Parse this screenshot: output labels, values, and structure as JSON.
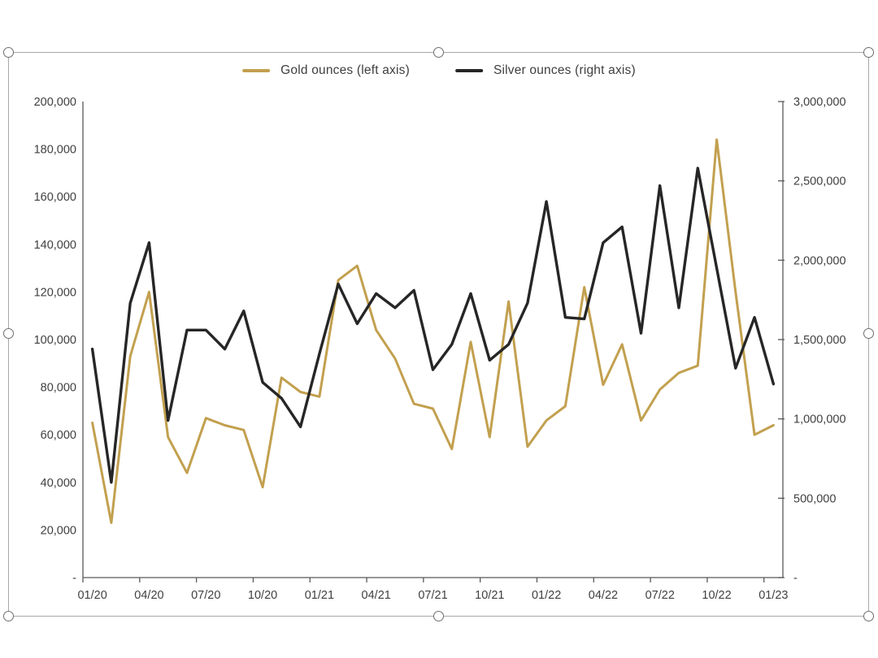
{
  "chart": {
    "legend": {
      "gold_label": "Gold ounces (left axis)",
      "silver_label": "Silver ounces (right axis)"
    },
    "colors": {
      "gold_line": "#c2a04f",
      "silver_line": "#262626",
      "axis_line": "#595959",
      "tick_text": "#404040",
      "frame_border": "#a9a9a9",
      "handle_border": "#6e6e6e"
    }
  },
  "chart_data": {
    "type": "line",
    "title": "",
    "grid": false,
    "legend_position": "top-center",
    "x_tick_labels": [
      "01/20",
      "04/20",
      "07/20",
      "10/20",
      "01/21",
      "04/21",
      "07/21",
      "10/21",
      "01/22",
      "04/22",
      "07/22",
      "10/22",
      "01/23"
    ],
    "x_tick_every_n_points": 3,
    "n_points": 37,
    "left_axis": {
      "min": 0,
      "max": 200000,
      "step": 20000,
      "tick_labels": [
        "200,000",
        "180,000",
        "160,000",
        "140,000",
        "120,000",
        "100,000",
        "80,000",
        "60,000",
        "40,000",
        "20,000",
        "-"
      ]
    },
    "right_axis": {
      "min": 0,
      "max": 3000000,
      "step": 500000,
      "tick_labels": [
        "3,000,000",
        "2,500,000",
        "2,000,000",
        "1,500,000",
        "1,000,000",
        "500,000",
        "-"
      ]
    },
    "series": [
      {
        "name": "Gold ounces (left axis)",
        "axis": "left",
        "color": "#c2a04f",
        "values": [
          65000,
          23000,
          93000,
          120000,
          59000,
          44000,
          67000,
          64000,
          62000,
          38000,
          84000,
          78000,
          76000,
          125000,
          131000,
          104000,
          92000,
          73000,
          71000,
          54000,
          99000,
          59000,
          116000,
          55000,
          66000,
          72000,
          122000,
          81000,
          98000,
          66000,
          79000,
          86000,
          89000,
          184000,
          120000,
          60000,
          64000
        ]
      },
      {
        "name": "Silver ounces (right axis)",
        "axis": "right",
        "color": "#262626",
        "values": [
          1440000,
          600000,
          1730000,
          2110000,
          990000,
          1560000,
          1560000,
          1440000,
          1680000,
          1230000,
          1130000,
          950000,
          1410000,
          1850000,
          1600000,
          1790000,
          1700000,
          1810000,
          1310000,
          1470000,
          1790000,
          1370000,
          1470000,
          1730000,
          2370000,
          1640000,
          1630000,
          2110000,
          2210000,
          1540000,
          2470000,
          1700000,
          2580000,
          1950000,
          1320000,
          1640000,
          1220000
        ]
      }
    ]
  }
}
